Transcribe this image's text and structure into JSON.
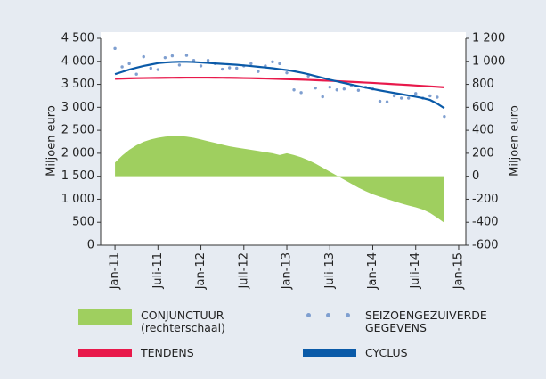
{
  "chart_data": {
    "type": "line",
    "y_label": "Miljoen euro",
    "y2_label": "Miljoen euro",
    "x": [
      "2011-01",
      "2011-02",
      "2011-03",
      "2011-04",
      "2011-05",
      "2011-06",
      "2011-07",
      "2011-08",
      "2011-09",
      "2011-10",
      "2011-11",
      "2011-12",
      "2012-01",
      "2012-02",
      "2012-03",
      "2012-04",
      "2012-05",
      "2012-06",
      "2012-07",
      "2012-08",
      "2012-09",
      "2012-10",
      "2012-11",
      "2012-12",
      "2013-01",
      "2013-02",
      "2013-03",
      "2013-04",
      "2013-05",
      "2013-06",
      "2013-07",
      "2013-08",
      "2013-09",
      "2013-10",
      "2013-11",
      "2013-12",
      "2014-01",
      "2014-02",
      "2014-03",
      "2014-04",
      "2014-05",
      "2014-06",
      "2014-07",
      "2014-08",
      "2014-09",
      "2014-10",
      "2014-11"
    ],
    "xlim": [
      "2010-11",
      "2015-02"
    ],
    "xticks": [
      {
        "value": "2011-01",
        "label": "Jan-11"
      },
      {
        "value": "2011-07",
        "label": "Juli-11"
      },
      {
        "value": "2012-01",
        "label": "Jan-12"
      },
      {
        "value": "2012-07",
        "label": "Juli-12"
      },
      {
        "value": "2013-01",
        "label": "Jan-13"
      },
      {
        "value": "2013-07",
        "label": "Juli-13"
      },
      {
        "value": "2014-01",
        "label": "Jan-14"
      },
      {
        "value": "2014-07",
        "label": "Juli-14"
      },
      {
        "value": "2015-01",
        "label": "Jan-15"
      }
    ],
    "ylim": [
      0,
      4500
    ],
    "yticks": [
      0,
      500,
      {
        "value": 1000,
        "label": "1 000"
      },
      {
        "value": 1500,
        "label": "1 500"
      },
      {
        "value": 2000,
        "label": "2 000"
      },
      {
        "value": 2500,
        "label": "2 500"
      },
      {
        "value": 3000,
        "label": "3 000"
      },
      {
        "value": 3500,
        "label": "3 500"
      },
      {
        "value": 4000,
        "label": "4 000"
      },
      {
        "value": 4500,
        "label": "4 500"
      }
    ],
    "y2lim": [
      -600,
      1200
    ],
    "y2ticks": [
      -600,
      -400,
      -200,
      0,
      200,
      400,
      600,
      800,
      {
        "value": 1000,
        "label": "1 000"
      },
      {
        "value": 1200,
        "label": "1 200"
      }
    ],
    "series": [
      {
        "name": "CONJUNCTUUR (rechterschaal)",
        "color": "#9fcf5f",
        "style": "area",
        "axis": "y2",
        "values": [
          120,
          180,
          230,
          270,
          300,
          320,
          335,
          345,
          350,
          350,
          345,
          335,
          320,
          305,
          290,
          275,
          260,
          250,
          240,
          230,
          220,
          210,
          200,
          185,
          200,
          185,
          165,
          140,
          110,
          75,
          40,
          5,
          -30,
          -65,
          -100,
          -130,
          -157,
          -178,
          -198,
          -218,
          -237,
          -255,
          -270,
          -290,
          -320,
          -360,
          -405
        ]
      },
      {
        "name": "SEIZOENGEZUIVERDE GEGEVENS",
        "color": "#7f9fd0",
        "style": "dots",
        "values": [
          4280,
          3880,
          3950,
          3720,
          4100,
          3850,
          3820,
          4080,
          4120,
          3920,
          4130,
          4020,
          3900,
          4020,
          3950,
          3830,
          3860,
          3850,
          3900,
          3950,
          3780,
          3900,
          3990,
          3950,
          3750,
          3380,
          3320,
          3680,
          3420,
          3230,
          3440,
          3380,
          3400,
          3480,
          3370,
          3440,
          3400,
          3130,
          3120,
          3250,
          3200,
          3200,
          3300,
          3200,
          3250,
          3220,
          2800
        ]
      },
      {
        "name": "TENDENS",
        "color": "#e8194b",
        "style": "line",
        "values": [
          3620,
          3625,
          3630,
          3633,
          3636,
          3638,
          3640,
          3642,
          3643,
          3644,
          3645,
          3645,
          3645,
          3645,
          3644,
          3643,
          3641,
          3639,
          3636,
          3633,
          3630,
          3626,
          3622,
          3618,
          3613,
          3608,
          3603,
          3597,
          3591,
          3584,
          3577,
          3570,
          3563,
          3555,
          3547,
          3539,
          3531,
          3522,
          3513,
          3504,
          3495,
          3486,
          3476,
          3466,
          3456,
          3446,
          3436
        ]
      },
      {
        "name": "CYCLUS",
        "color": "#0a5aa8",
        "style": "line",
        "values": [
          3720,
          3770,
          3820,
          3860,
          3900,
          3930,
          3960,
          3975,
          3985,
          3990,
          3990,
          3985,
          3975,
          3965,
          3955,
          3945,
          3935,
          3925,
          3912,
          3898,
          3882,
          3866,
          3850,
          3830,
          3810,
          3785,
          3755,
          3720,
          3680,
          3640,
          3600,
          3565,
          3530,
          3495,
          3462,
          3430,
          3398,
          3368,
          3340,
          3312,
          3285,
          3258,
          3230,
          3200,
          3160,
          3080,
          2980
        ]
      }
    ]
  }
}
